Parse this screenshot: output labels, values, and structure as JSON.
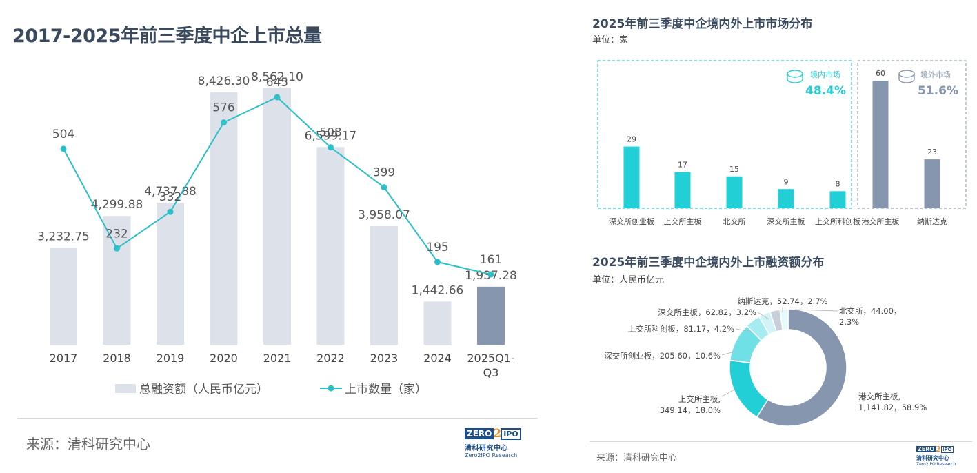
{
  "left": {
    "title": "2017-2025年前三季度中企上市总量",
    "source": "来源：清科研究中心",
    "logo": {
      "zero": "ZERO",
      "two": "2",
      "ipo": "IPO",
      "cn": "清科研究中心",
      "en": "Zero2IPO Research"
    }
  },
  "right": {
    "chart1_title": "2025年前三季度中企境内外上市市场分布",
    "chart1_unit": "单位：家",
    "chart2_title": "2025年前三季度中企境内外上市融资额分布",
    "chart2_unit": "单位：人民币亿元",
    "source": "来源：清科研究中心",
    "logo": {
      "zero": "ZERO",
      "two": "2",
      "ipo": "IPO",
      "cn": "清科研究中心",
      "en": "Zero2IPO Research"
    }
  },
  "colors": {
    "bar": "#dde1e9",
    "bar_highlight": "#8596ae",
    "line": "#2bbfc7",
    "domestic": "#22cfd6",
    "overseas": "#8596ae",
    "title": "#3a4a5e"
  },
  "chart_data": [
    {
      "type": "bar",
      "title": "2017-2025年前三季度中企上市总量",
      "categories": [
        "2017",
        "2018",
        "2019",
        "2020",
        "2021",
        "2022",
        "2023",
        "2024",
        "2025Q1-Q3"
      ],
      "series": [
        {
          "name": "总融资额（人民币亿元）",
          "type": "bar",
          "values": [
            3232.75,
            4299.88,
            4737.88,
            8426.3,
            8562.1,
            6599.17,
            3958.07,
            1442.66,
            1937.28
          ],
          "labels": [
            "3,232.75",
            "4,299.88",
            "4,737.88",
            "8,426.30",
            "8,562.10",
            "6,599.17",
            "3,958.07",
            "1,442.66",
            "1,937.28"
          ]
        },
        {
          "name": "上市数量（家）",
          "type": "line",
          "values": [
            504,
            232,
            332,
            576,
            645,
            508,
            399,
            195,
            161
          ],
          "labels": [
            "504",
            "232",
            "332",
            "576",
            "645",
            "508",
            "399",
            "195",
            "161"
          ]
        }
      ],
      "legend": "bottom",
      "grid": false
    },
    {
      "type": "bar",
      "title": "2025年前三季度中企境内外上市市场分布",
      "unit": "单位：家",
      "categories": [
        "深交所创业板",
        "上交所主板",
        "北交所",
        "深交所主板",
        "上交所科创板",
        "港交所主板",
        "纳斯达克"
      ],
      "values": [
        29,
        17,
        15,
        9,
        8,
        60,
        23
      ],
      "labels": [
        "29",
        "17",
        "15",
        "9",
        "8",
        "60",
        "23"
      ],
      "groups": [
        {
          "name": "境内市场",
          "share": "48.4%",
          "categories": [
            "深交所创业板",
            "上交所主板",
            "北交所",
            "深交所主板",
            "上交所科创板"
          ]
        },
        {
          "name": "境外市场",
          "share": "51.6%",
          "categories": [
            "港交所主板",
            "纳斯达克"
          ]
        }
      ]
    },
    {
      "type": "pie",
      "title": "2025年前三季度中企境内外上市融资额分布",
      "unit": "单位：人民币亿元",
      "slices": [
        {
          "name": "港交所主板",
          "value": 1141.82,
          "percent": "58.9%",
          "label_line1": "港交所主板,",
          "label_line2": "1,141.82，58.9%"
        },
        {
          "name": "上交所主板",
          "value": 349.14,
          "percent": "18.0%",
          "label_line1": "上交所主板,",
          "label_line2": "349.14，18.0%"
        },
        {
          "name": "深交所创业板",
          "value": 205.6,
          "percent": "10.6%",
          "label_line1": "深交所创业板，205.60，10.6%"
        },
        {
          "name": "上交所科创板",
          "value": 81.17,
          "percent": "4.2%",
          "label_line1": "上交所科创板，81.17，4.2%"
        },
        {
          "name": "深交所主板",
          "value": 62.82,
          "percent": "3.2%",
          "label_line1": "深交所主板，62.82，3.2%"
        },
        {
          "name": "纳斯达克",
          "value": 52.74,
          "percent": "2.7%",
          "label_line1": "纳斯达克，52.74，2.7%"
        },
        {
          "name": "北交所",
          "value": 44.0,
          "percent": "2.3%",
          "label_line1": "北交所，44.00，",
          "label_line2": "2.3%"
        }
      ]
    }
  ]
}
